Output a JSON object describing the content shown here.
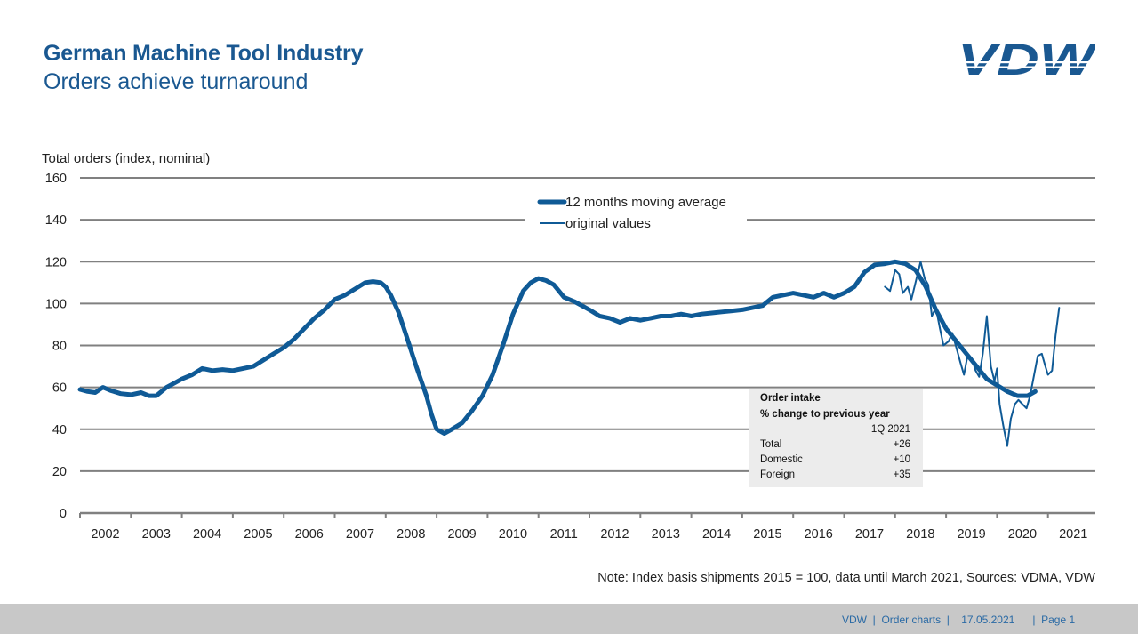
{
  "header": {
    "title": "German Machine Tool Industry",
    "subtitle": "Orders achieve turnaround",
    "logo_text": "VDW"
  },
  "colors": {
    "brand_blue": "#1a5891",
    "series_blue": "#0f5a96",
    "grid": "#808080",
    "footer_bg": "#c8c8c8"
  },
  "note": "Note: Index basis shipments 2015 = 100, data until March 2021, Sources: VDMA, VDW",
  "footer": "VDW  |  Order charts  |    17.05.2021      |  Page 1",
  "infobox": {
    "title": "Order intake",
    "subtitle": "% change to previous year",
    "period": "1Q 2021",
    "rows": [
      {
        "label": "Total",
        "value": "+26"
      },
      {
        "label": "Domestic",
        "value": "+10"
      },
      {
        "label": "Foreign",
        "value": "+35"
      }
    ]
  },
  "chart_data": {
    "type": "line",
    "title": "",
    "ylabel": "Total orders (index, nominal)",
    "xlabel": "",
    "ylim": [
      0,
      160
    ],
    "yticks": [
      0,
      20,
      40,
      60,
      80,
      100,
      120,
      140,
      160
    ],
    "xlim": [
      2002.0,
      2021.25
    ],
    "xticks": [
      "2002",
      "2003",
      "2004",
      "2005",
      "2006",
      "2007",
      "2008",
      "2009",
      "2010",
      "2011",
      "2012",
      "2013",
      "2014",
      "2015",
      "2016",
      "2017",
      "2018",
      "2019",
      "2020",
      "2021"
    ],
    "grid": true,
    "legend": {
      "placement": "top-center",
      "entries": [
        "12 months moving average",
        "original values"
      ]
    },
    "series": [
      {
        "name": "12 months moving average",
        "style": "thick",
        "x": [
          2002.0,
          2002.15,
          2002.3,
          2002.45,
          2002.6,
          2002.8,
          2003.0,
          2003.2,
          2003.35,
          2003.5,
          2003.7,
          2003.85,
          2004.0,
          2004.2,
          2004.4,
          2004.6,
          2004.8,
          2005.0,
          2005.2,
          2005.4,
          2005.6,
          2005.8,
          2006.0,
          2006.2,
          2006.4,
          2006.6,
          2006.8,
          2007.0,
          2007.2,
          2007.4,
          2007.6,
          2007.75,
          2007.9,
          2008.0,
          2008.1,
          2008.25,
          2008.4,
          2008.6,
          2008.8,
          2008.9,
          2009.0,
          2009.15,
          2009.3,
          2009.5,
          2009.7,
          2009.9,
          2010.1,
          2010.3,
          2010.5,
          2010.7,
          2010.85,
          2011.0,
          2011.15,
          2011.3,
          2011.5,
          2011.7,
          2011.85,
          2012.0,
          2012.2,
          2012.4,
          2012.6,
          2012.8,
          2013.0,
          2013.2,
          2013.4,
          2013.6,
          2013.8,
          2014.0,
          2014.2,
          2014.4,
          2014.6,
          2014.8,
          2015.0,
          2015.2,
          2015.4,
          2015.6,
          2015.8,
          2016.0,
          2016.2,
          2016.4,
          2016.6,
          2016.8,
          2017.0,
          2017.2,
          2017.4,
          2017.6,
          2017.8,
          2018.0,
          2018.2,
          2018.4,
          2018.6,
          2018.8,
          2019.0,
          2019.2,
          2019.4,
          2019.6,
          2019.8,
          2020.0,
          2020.2,
          2020.4,
          2020.6,
          2020.75
        ],
        "values": [
          59,
          58,
          57.5,
          60,
          58.5,
          57,
          56.5,
          57.5,
          56,
          56,
          60,
          62,
          64,
          66,
          69,
          68,
          68.5,
          68,
          69,
          70,
          73,
          76,
          79,
          83,
          88,
          93,
          97,
          102,
          104,
          107,
          110,
          110.5,
          110,
          108,
          104,
          96,
          85,
          70,
          56,
          47,
          40,
          38,
          40,
          43,
          49,
          56,
          66,
          80,
          95,
          106,
          110,
          112,
          111,
          109,
          103,
          101,
          99,
          97,
          94,
          93,
          91,
          93,
          92,
          93,
          94,
          94,
          95,
          94,
          95,
          95.5,
          96,
          96.5,
          97,
          98,
          99,
          103,
          104,
          105,
          104,
          103,
          105,
          103,
          105,
          108,
          115,
          118.5,
          119,
          120,
          119,
          116,
          108,
          97,
          88,
          82,
          76,
          70,
          64,
          61,
          58,
          56,
          56,
          58
        ]
      },
      {
        "name": "original values",
        "style": "thin",
        "x": [
          2017.8,
          2017.9,
          2018.0,
          2018.08,
          2018.15,
          2018.25,
          2018.32,
          2018.4,
          2018.5,
          2018.58,
          2018.65,
          2018.72,
          2018.8,
          2018.88,
          2018.95,
          2019.05,
          2019.12,
          2019.2,
          2019.28,
          2019.35,
          2019.42,
          2019.5,
          2019.58,
          2019.65,
          2019.72,
          2019.8,
          2019.88,
          2019.95,
          2020.0,
          2020.05,
          2020.12,
          2020.2,
          2020.27,
          2020.35,
          2020.42,
          2020.5,
          2020.58,
          2020.65,
          2020.72,
          2020.8,
          2020.88,
          2020.95,
          2021.0,
          2021.08,
          2021.15,
          2021.22
        ],
        "values": [
          108,
          106,
          116,
          114,
          105,
          108,
          102,
          110,
          120,
          112,
          109,
          94,
          98,
          88,
          80,
          82,
          86,
          79,
          72,
          66,
          75,
          74,
          68,
          65,
          76,
          94,
          70,
          63,
          69,
          52,
          42,
          32,
          45,
          52,
          54,
          52,
          50,
          56,
          65,
          75,
          76,
          70,
          66,
          68,
          85,
          98
        ]
      }
    ]
  }
}
